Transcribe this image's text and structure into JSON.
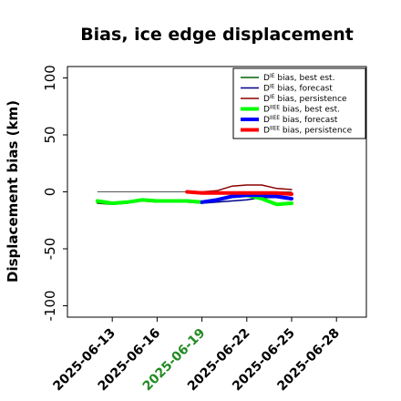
{
  "chart_data": {
    "type": "line",
    "title": "Bias, ice edge displacement",
    "xlabel": "",
    "ylabel": "Displacement bias (km)",
    "ylim": [
      -110,
      110
    ],
    "xlim": [
      "2025-06-10",
      "2025-06-30"
    ],
    "yticks": [
      100,
      50,
      0,
      -50,
      -100
    ],
    "xticks": [
      "2025-06-13",
      "2025-06-16",
      "2025-06-19",
      "2025-06-22",
      "2025-06-25",
      "2025-06-28"
    ],
    "highlight_tick": "2025-06-19",
    "highlight_color": "#228B22",
    "zero_line": true,
    "grid": false,
    "legend_position": "top-right",
    "series": [
      {
        "name": "D^IE bias, best est.",
        "color": "#006400",
        "width": 1.5,
        "x": [
          "2025-06-12",
          "2025-06-13",
          "2025-06-14",
          "2025-06-15",
          "2025-06-16",
          "2025-06-17",
          "2025-06-18",
          "2025-06-19"
        ],
        "y": [
          -10,
          -11,
          -10,
          -8,
          -9,
          -9,
          -9,
          -10
        ]
      },
      {
        "name": "D^IE bias, forecast",
        "color": "#00008B",
        "width": 1.5,
        "x": [
          "2025-06-19",
          "2025-06-20",
          "2025-06-21",
          "2025-06-22",
          "2025-06-23",
          "2025-06-24",
          "2025-06-25"
        ],
        "y": [
          -10,
          -9,
          -8,
          -7,
          -5,
          -5,
          -7
        ]
      },
      {
        "name": "D^IE bias, persistence",
        "color": "#8B0000",
        "width": 1.5,
        "x": [
          "2025-06-18",
          "2025-06-19",
          "2025-06-20",
          "2025-06-21",
          "2025-06-22",
          "2025-06-23",
          "2025-06-24",
          "2025-06-25"
        ],
        "y": [
          0,
          0,
          1,
          5,
          6,
          6,
          3,
          2
        ]
      },
      {
        "name": "D^IIEE bias, best est.",
        "color": "#00FF00",
        "width": 4,
        "x": [
          "2025-06-12",
          "2025-06-13",
          "2025-06-14",
          "2025-06-15",
          "2025-06-16",
          "2025-06-17",
          "2025-06-18",
          "2025-06-19",
          "2025-06-20",
          "2025-06-21",
          "2025-06-22",
          "2025-06-23",
          "2025-06-24",
          "2025-06-25"
        ],
        "y": [
          -8,
          -10,
          -9,
          -7,
          -8,
          -8,
          -8,
          -9,
          -7,
          -4,
          -3,
          -6,
          -11,
          -10
        ]
      },
      {
        "name": "D^IIEE bias, forecast",
        "color": "#0000FF",
        "width": 4,
        "x": [
          "2025-06-19",
          "2025-06-20",
          "2025-06-21",
          "2025-06-22",
          "2025-06-23",
          "2025-06-24",
          "2025-06-25"
        ],
        "y": [
          -9,
          -7,
          -4,
          -3,
          -3,
          -4,
          -6
        ]
      },
      {
        "name": "D^IIEE bias, persistence",
        "color": "#FF0000",
        "width": 4,
        "x": [
          "2025-06-18",
          "2025-06-19",
          "2025-06-20",
          "2025-06-21",
          "2025-06-22",
          "2025-06-23",
          "2025-06-24",
          "2025-06-25"
        ],
        "y": [
          0,
          -1,
          -1,
          -1,
          -1,
          -1,
          -1,
          -2
        ]
      }
    ]
  }
}
